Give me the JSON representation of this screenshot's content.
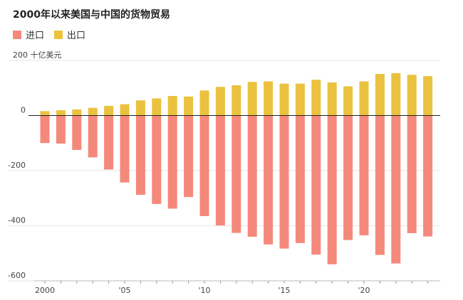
{
  "chart_data": {
    "type": "bar",
    "title": "2000年以来美国与中国的货物贸易",
    "unit_label": "200 十亿美元",
    "legend": [
      {
        "name": "进口",
        "color": "#f4897b"
      },
      {
        "name": "出口",
        "color": "#ebc23f"
      }
    ],
    "x": [
      2000,
      2001,
      2002,
      2003,
      2004,
      2005,
      2006,
      2007,
      2008,
      2009,
      2010,
      2011,
      2012,
      2013,
      2014,
      2015,
      2016,
      2017,
      2018,
      2019,
      2020,
      2021,
      2022,
      2023,
      2024
    ],
    "x_tick_labels": [
      {
        "year": 2000,
        "label": "2000"
      },
      {
        "year": 2005,
        "label": "'05"
      },
      {
        "year": 2010,
        "label": "'10"
      },
      {
        "year": 2015,
        "label": "'15"
      },
      {
        "year": 2020,
        "label": "'20"
      }
    ],
    "series": [
      {
        "name": "出口",
        "values": [
          16,
          19,
          22,
          28,
          35,
          41,
          55,
          62,
          71,
          69,
          91,
          104,
          110,
          122,
          124,
          116,
          116,
          130,
          120,
          106,
          124,
          151,
          154,
          148,
          143
        ]
      },
      {
        "name": "进口",
        "values": [
          -100,
          -102,
          -125,
          -152,
          -196,
          -243,
          -288,
          -321,
          -338,
          -296,
          -365,
          -399,
          -426,
          -440,
          -468,
          -483,
          -463,
          -505,
          -540,
          -452,
          -435,
          -506,
          -537,
          -427,
          -439
        ]
      }
    ],
    "ylim": [
      -600,
      200
    ],
    "y_ticks": [
      {
        "value": 200,
        "label": "200"
      },
      {
        "value": 0,
        "label": "0"
      },
      {
        "value": -200,
        "label": "-200"
      },
      {
        "value": -400,
        "label": "-400"
      },
      {
        "value": -600,
        "label": "-600"
      }
    ]
  }
}
